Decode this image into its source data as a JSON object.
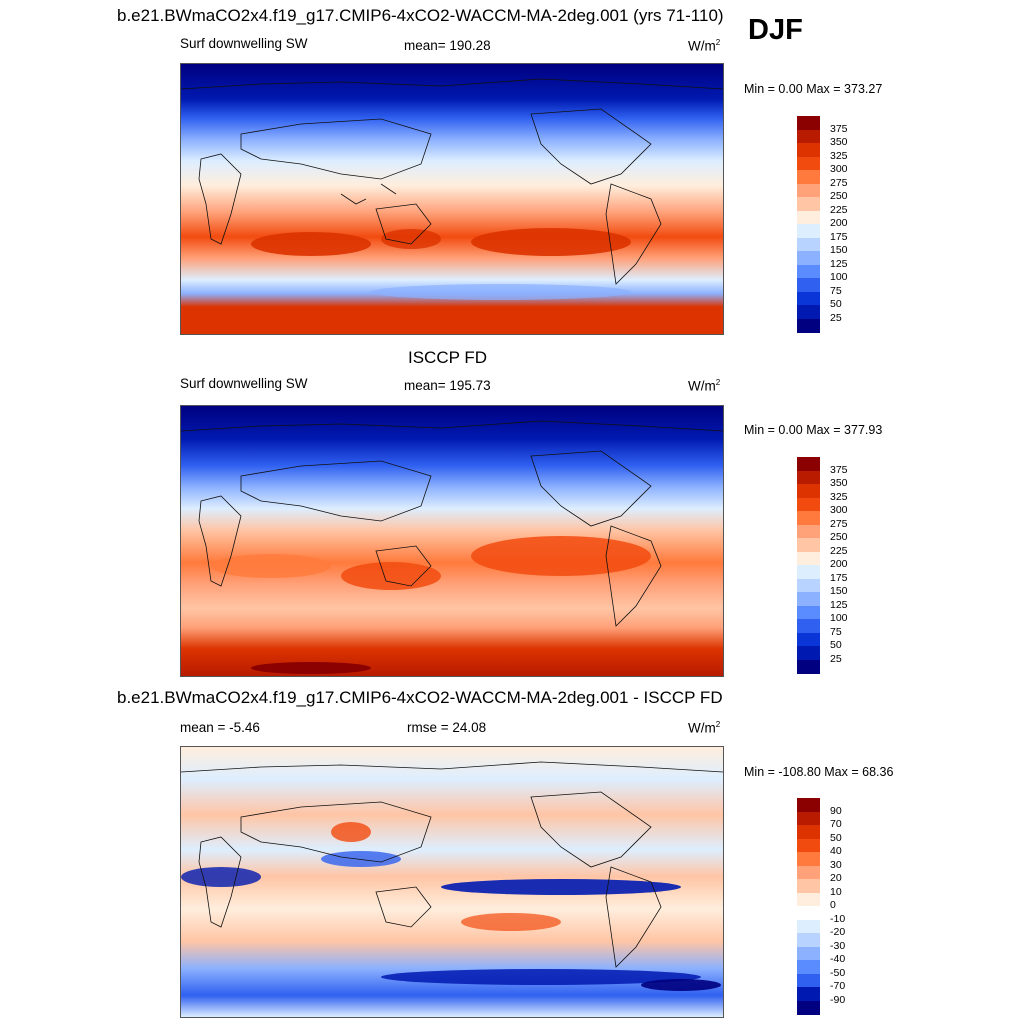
{
  "season": "DJF",
  "panels": [
    {
      "id": "model",
      "title": "b.e21.BWmaCO2x4.f19_g17.CMIP6-4xCO2-WACCM-MA-2deg.001 (yrs 71-110)",
      "left_label": "Surf downwelling SW",
      "center_label": "mean= 190.28",
      "units": "W/m",
      "units_sup": "2",
      "minmax": "Min =   0.00 Max = 373.27",
      "colorbar": {
        "labels": [
          "375",
          "350",
          "325",
          "300",
          "275",
          "250",
          "225",
          "200",
          "175",
          "150",
          "125",
          "100",
          "75",
          "50",
          "25"
        ],
        "colors": [
          "#8b0000",
          "#b81b00",
          "#dc3300",
          "#f24b0f",
          "#ff7a3c",
          "#ffa179",
          "#ffc5a5",
          "#ffeedd",
          "#ddeeff",
          "#b8d3ff",
          "#8cb1ff",
          "#5b8cff",
          "#2f60f0",
          "#0a36d8",
          "#0019b0",
          "#000080"
        ]
      }
    },
    {
      "id": "obs",
      "title": "ISCCP FD",
      "left_label": "Surf downwelling SW",
      "center_label": "mean= 195.73",
      "units": "W/m",
      "units_sup": "2",
      "minmax": "Min =   0.00 Max = 377.93",
      "colorbar": {
        "labels": [
          "375",
          "350",
          "325",
          "300",
          "275",
          "250",
          "225",
          "200",
          "175",
          "150",
          "125",
          "100",
          "75",
          "50",
          "25"
        ],
        "colors": [
          "#8b0000",
          "#b81b00",
          "#dc3300",
          "#f24b0f",
          "#ff7a3c",
          "#ffa179",
          "#ffc5a5",
          "#ffeedd",
          "#ddeeff",
          "#b8d3ff",
          "#8cb1ff",
          "#5b8cff",
          "#2f60f0",
          "#0a36d8",
          "#0019b0",
          "#000080"
        ]
      }
    },
    {
      "id": "diff",
      "title": "b.e21.BWmaCO2x4.f19_g17.CMIP6-4xCO2-WACCM-MA-2deg.001 - ISCCP FD",
      "left_label": "mean =  -5.46",
      "center_label": "rmse =  24.08",
      "units": "W/m",
      "units_sup": "2",
      "minmax": "Min = -108.80 Max =  68.36",
      "colorbar": {
        "labels": [
          "90",
          "70",
          "50",
          "40",
          "30",
          "20",
          "10",
          "0",
          "-10",
          "-20",
          "-30",
          "-40",
          "-50",
          "-70",
          "-90"
        ],
        "colors": [
          "#8b0000",
          "#b81b00",
          "#dc3300",
          "#f24b0f",
          "#ff7a3c",
          "#ffa179",
          "#ffc5a5",
          "#ffeedd",
          "#ffffff",
          "#ddeeff",
          "#b8d3ff",
          "#8cb1ff",
          "#5b8cff",
          "#2f60f0",
          "#0019b0",
          "#000080"
        ]
      }
    }
  ]
}
